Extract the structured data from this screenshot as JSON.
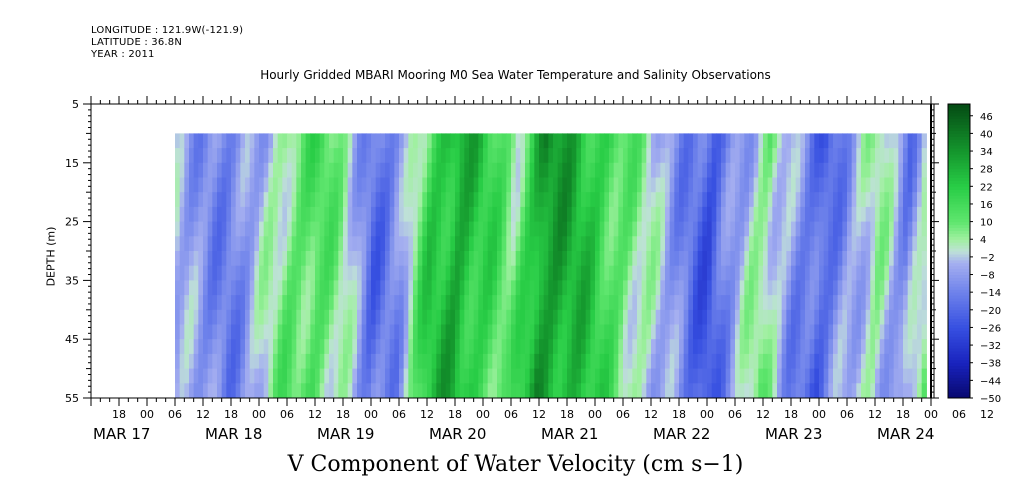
{
  "header": {
    "longitude": "LONGITUDE : 121.9W(-121.9)",
    "latitude": "LATITUDE : 36.8N",
    "year": "YEAR : 2011"
  },
  "chart_data": {
    "type": "heatmap",
    "title": "Hourly Gridded MBARI Mooring M0 Sea Water Temperature and Salinity Observations",
    "xlabel": "V Component of Water Velocity (cm s−1)",
    "ylabel": "DEPTH (m)",
    "y_ticks": [
      5,
      15,
      25,
      35,
      45,
      55
    ],
    "y_range": [
      5,
      55
    ],
    "y_inverted": true,
    "data_depth_range": [
      10,
      55
    ],
    "hour_ticks": [
      "18",
      "00",
      "06",
      "12",
      "18",
      "00",
      "06",
      "12",
      "18",
      "00",
      "06",
      "12",
      "18",
      "00",
      "06",
      "12",
      "18",
      "00",
      "06",
      "12",
      "18",
      "00",
      "06",
      "12",
      "18",
      "00",
      "06",
      "12",
      "18",
      "00",
      "06",
      "12"
    ],
    "date_labels": [
      "MAR 17",
      "MAR 18",
      "MAR 19",
      "MAR 20",
      "MAR 21",
      "MAR 22",
      "MAR 23",
      "MAR 24"
    ],
    "x_range_hours_from_mar17_00": [
      -12,
      168
    ],
    "data_x_range_hours_from_mar17_00": [
      6,
      167
    ],
    "colorbar": {
      "tick_labels": [
        "46",
        "40",
        "34",
        "28",
        "22",
        "16",
        "10",
        "4",
        "−2",
        "−8",
        "−14",
        "−20",
        "−26",
        "−32",
        "−38",
        "−44",
        "−50"
      ],
      "min": -50,
      "max": 50,
      "step": 3
    },
    "velocity_profile_approx": {
      "hours": [
        6,
        12,
        18,
        24,
        30,
        36,
        42,
        48,
        54,
        60,
        66,
        72,
        78,
        84,
        90,
        96,
        102,
        108,
        114,
        120,
        126,
        132,
        138,
        144,
        150,
        156,
        162,
        167
      ],
      "values": [
        -6,
        -10,
        -14,
        -4,
        10,
        14,
        2,
        -18,
        -10,
        20,
        30,
        18,
        6,
        34,
        28,
        20,
        10,
        -2,
        -12,
        -24,
        -8,
        8,
        -10,
        -22,
        -6,
        4,
        -14,
        8
      ]
    }
  }
}
